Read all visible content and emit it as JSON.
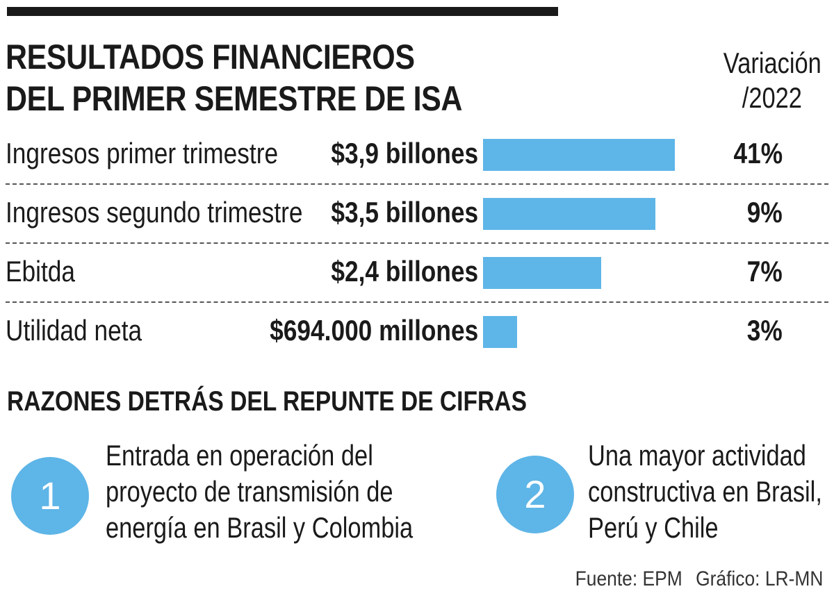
{
  "title": {
    "line1": "RESULTADOS FINANCIEROS",
    "line2": "DEL PRIMER SEMESTRE DE ISA"
  },
  "variation_header": {
    "line1": "Variación",
    "line2": "/2022"
  },
  "chart_data": {
    "type": "bar",
    "orientation": "horizontal",
    "title": "RESULTADOS FINANCIEROS DEL PRIMER SEMESTRE DE ISA",
    "categories": [
      "Ingresos primer trimestre",
      "Ingresos segundo trimestre",
      "Ebitda",
      "Utilidad neta"
    ],
    "values": [
      3.9,
      3.5,
      2.4,
      0.694
    ],
    "value_unit": "billones",
    "value_labels": [
      "$3,9 billones",
      "$3,5 billones",
      "$2,4 billones",
      "$694.000 millones"
    ],
    "variation_labels": [
      "41%",
      "9%",
      "7%",
      "3%"
    ],
    "variation_values": [
      41,
      9,
      7,
      3
    ],
    "xlim": [
      0,
      4.1
    ],
    "bar_color": "#5eb5e7",
    "grid": false
  },
  "reasons": {
    "title": "RAZONES DETRÁS DEL REPUNTE DE CIFRAS",
    "items": [
      {
        "number": "1",
        "lines": [
          "Entrada en operación del",
          "proyecto de transmisión de",
          "energía en Brasil y Colombia"
        ]
      },
      {
        "number": "2",
        "lines": [
          "Una mayor actividad",
          "constructiva en Brasil,",
          "Perú y Chile"
        ]
      }
    ]
  },
  "credits": {
    "source": "Fuente: EPM",
    "graphic": "Gráfico: LR-MN"
  },
  "colors": {
    "accent": "#5eb5e7",
    "text": "#1a1a1a"
  }
}
